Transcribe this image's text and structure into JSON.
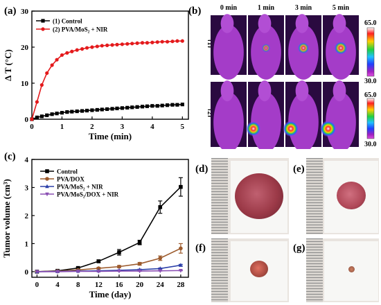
{
  "panels": {
    "a": {
      "label": "(a)"
    },
    "b": {
      "label": "(b)"
    },
    "c": {
      "label": "(c)"
    },
    "d": {
      "label": "(d)"
    },
    "e": {
      "label": "(e)"
    },
    "f": {
      "label": "(f)"
    },
    "g": {
      "label": "(g)"
    }
  },
  "thermal": {
    "columns": [
      "0 min",
      "1 min",
      "3 min",
      "5 min"
    ],
    "rows": [
      "(1)",
      "(2)"
    ],
    "scale_max": "65.0",
    "scale_min": "30.0",
    "hotspot": [
      [
        0,
        0.25,
        0.55,
        0.7
      ],
      [
        0,
        0.85,
        0.95,
        1.0
      ]
    ]
  },
  "chart_data": [
    {
      "type": "line",
      "xlabel": "Time (min)",
      "ylabel": "Δ T (°C)",
      "xlim": [
        0,
        5.2
      ],
      "ylim": [
        0,
        30
      ],
      "xticks": [
        0,
        1,
        2,
        3,
        4,
        5
      ],
      "yticks": [
        0,
        10,
        20,
        30
      ],
      "legend_position": "top-left",
      "x": [
        0,
        0.17,
        0.33,
        0.5,
        0.67,
        0.83,
        1.0,
        1.17,
        1.33,
        1.5,
        1.67,
        1.83,
        2.0,
        2.17,
        2.33,
        2.5,
        2.67,
        2.83,
        3.0,
        3.17,
        3.33,
        3.5,
        3.67,
        3.83,
        4.0,
        4.17,
        4.33,
        4.5,
        4.67,
        4.83,
        5.0
      ],
      "series": [
        {
          "name": "(1) Control",
          "color": "#000000",
          "marker": "square",
          "values": [
            0,
            0.5,
            0.8,
            1.1,
            1.4,
            1.6,
            1.8,
            2.0,
            2.1,
            2.2,
            2.3,
            2.4,
            2.5,
            2.6,
            2.7,
            2.8,
            2.9,
            3.0,
            3.1,
            3.2,
            3.3,
            3.4,
            3.5,
            3.6,
            3.7,
            3.7,
            3.8,
            3.9,
            4.0,
            4.0,
            4.1
          ]
        },
        {
          "name": "(2) PVA/MoS₂ + NIR",
          "color": "#e41a1c",
          "marker": "circle",
          "values": [
            0,
            4.8,
            9.5,
            12.8,
            15.0,
            16.5,
            17.8,
            18.4,
            18.8,
            19.2,
            19.5,
            19.8,
            20.0,
            20.2,
            20.4,
            20.5,
            20.6,
            20.7,
            20.8,
            20.9,
            21.0,
            21.1,
            21.2,
            21.2,
            21.3,
            21.4,
            21.5,
            21.5,
            21.6,
            21.7,
            21.7
          ]
        }
      ]
    },
    {
      "type": "line",
      "xlabel": "Time (day)",
      "ylabel": "Tumor volume (cm³)",
      "xlim": [
        -1,
        29.5
      ],
      "ylim": [
        -0.2,
        4
      ],
      "xticks": [
        0,
        4,
        8,
        12,
        16,
        20,
        24,
        28
      ],
      "yticks": [
        0,
        1,
        2,
        3,
        4
      ],
      "legend_position": "top-left",
      "x": [
        0,
        4,
        8,
        12,
        16,
        20,
        24,
        28
      ],
      "series": [
        {
          "name": "Control",
          "color": "#000000",
          "marker": "square",
          "values": [
            0,
            0.03,
            0.13,
            0.37,
            0.69,
            1.04,
            2.3,
            3.02
          ],
          "errors": [
            0,
            0.02,
            0.03,
            0.04,
            0.1,
            0.08,
            0.22,
            0.33
          ]
        },
        {
          "name": "PVA/DOX",
          "color": "#9c5a2c",
          "marker": "circle",
          "values": [
            0,
            0.02,
            0.06,
            0.12,
            0.18,
            0.28,
            0.48,
            0.83
          ],
          "errors": [
            0,
            0.01,
            0.02,
            0.03,
            0.04,
            0.05,
            0.08,
            0.17
          ]
        },
        {
          "name": "PVA/MoS₂ + NIR",
          "color": "#2b3fa8",
          "marker": "triangle-up",
          "values": [
            0,
            0.01,
            0.02,
            0.03,
            0.05,
            0.07,
            0.11,
            0.23
          ],
          "errors": [
            0,
            0.01,
            0.01,
            0.01,
            0.01,
            0.02,
            0.02,
            0.03
          ]
        },
        {
          "name": "PVA/MoS₂/DOX + NIR",
          "color": "#8a4fb3",
          "marker": "triangle-down",
          "values": [
            0,
            0.0,
            0.01,
            0.01,
            0.02,
            0.02,
            0.03,
            0.04
          ],
          "errors": [
            0,
            0,
            0,
            0,
            0,
            0.01,
            0.01,
            0.01
          ]
        }
      ]
    }
  ],
  "tumor_photos": [
    {
      "panel": "d",
      "size": 0.9
    },
    {
      "panel": "e",
      "size": 0.5
    },
    {
      "panel": "f",
      "size": 0.3
    },
    {
      "panel": "g",
      "size": 0.1
    }
  ]
}
